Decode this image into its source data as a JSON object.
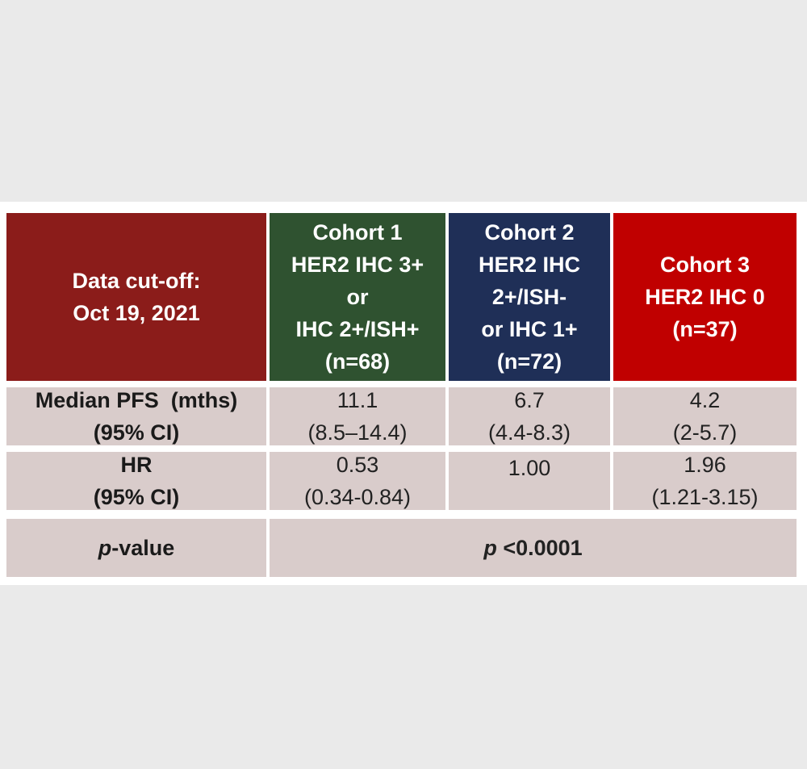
{
  "colors": {
    "page_bg": "#eaeaea",
    "panel_bg": "#ffffff",
    "header_label_bg": "#8b1c1a",
    "cohort1_bg": "#2f5230",
    "cohort2_bg": "#1f2f57",
    "cohort3_bg": "#c00000",
    "body_cell_bg": "#d9cccb"
  },
  "header": {
    "label": [
      "Data cut-off:",
      "Oct 19, 2021"
    ],
    "cohorts": [
      [
        "Cohort 1",
        "HER2 IHC 3+",
        "or",
        "IHC 2+/ISH+",
        "(n=68)"
      ],
      [
        "Cohort 2",
        "HER2 IHC",
        "2+/ISH-",
        "or IHC 1+",
        "(n=72)"
      ],
      [
        "Cohort 3",
        "HER2 IHC 0",
        "(n=37)"
      ]
    ]
  },
  "rows": {
    "pfs": {
      "label": [
        "Median PFS  (mths)",
        "(95% CI)"
      ],
      "values": [
        [
          "11.1",
          "(8.5–14.4)"
        ],
        [
          "6.7",
          "(4.4-8.3)"
        ],
        [
          "4.2",
          "(2-5.7)"
        ]
      ]
    },
    "hr": {
      "label": [
        "HR",
        "(95% CI)"
      ],
      "values": [
        [
          "0.53",
          "(0.34-0.84)"
        ],
        [
          "1.00",
          ""
        ],
        [
          "1.96",
          "(1.21-3.15)"
        ]
      ]
    },
    "pvalue": {
      "label_italic": "p",
      "label_rest": "-value",
      "value_italic": "p",
      "value_rest": " <0.0001"
    }
  }
}
